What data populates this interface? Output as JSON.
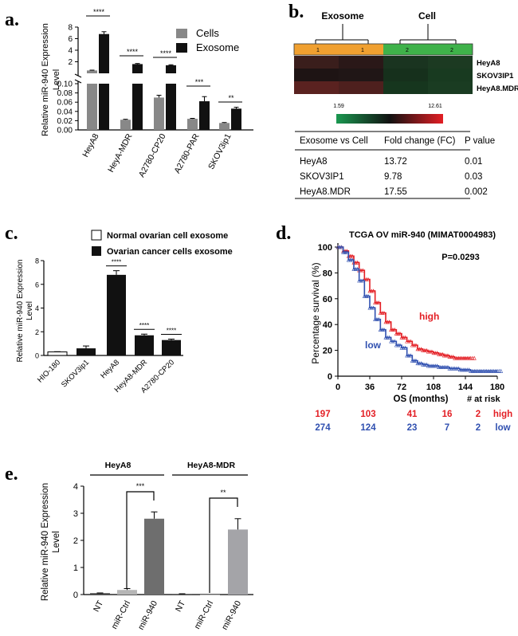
{
  "panels": {
    "a": "a.",
    "b": "b.",
    "c": "c.",
    "d": "d.",
    "e": "e."
  },
  "colors": {
    "black": "#111111",
    "grey": "#888888",
    "lightgrey": "#b0b0b0",
    "red": "#e31e24",
    "blue": "#3050b0"
  },
  "chart_data": [
    {
      "id": "a",
      "type": "bar",
      "categories": [
        "HeyA8",
        "HeyA-MDR",
        "A2780-CP20",
        "A2780-PAR",
        "SKOV3ip1"
      ],
      "series": [
        {
          "name": "Cells",
          "values": [
            0.5,
            0.022,
            0.07,
            0.024,
            0.015
          ],
          "errors": [
            0.05,
            0.001,
            0.005,
            0.001,
            0.001
          ]
        },
        {
          "name": "Exosome",
          "values": [
            6.8,
            1.6,
            1.4,
            0.062,
            0.046
          ],
          "errors": [
            0.4,
            0.1,
            0.08,
            0.01,
            0.003
          ]
        }
      ],
      "ylabel": "Relative miR-940 Expression Level",
      "ylim_upper": [
        0,
        8
      ],
      "yticks_upper": [
        "8",
        "6",
        "4",
        "2"
      ],
      "ylim_lower": [
        0,
        0.1
      ],
      "yticks_lower": [
        "0.10",
        "0.08",
        "0.06",
        "0.04",
        "0.02",
        "0.00"
      ],
      "significance": [
        "****",
        "****",
        "****",
        "***",
        "**"
      ],
      "legend": [
        "Cells",
        "Exosome"
      ]
    },
    {
      "id": "b",
      "type": "heatmap",
      "groups": [
        "Exosome",
        "Cell"
      ],
      "column_tags": [
        "1",
        "1",
        "2",
        "2"
      ],
      "rows": [
        "HeyA8",
        "SKOV3IP1",
        "HeyA8.MDR"
      ],
      "scale_min": "1.59",
      "scale_max": "12.61",
      "table": {
        "headers": [
          "Exosome vs Cell",
          "Fold change (FC)",
          "P value"
        ],
        "rows": [
          [
            "HeyA8",
            "13.72",
            "0.01"
          ],
          [
            "SKOV3IP1",
            "9.78",
            "0.03"
          ],
          [
            "HeyA8.MDR",
            "17.55",
            "0.002"
          ]
        ]
      }
    },
    {
      "id": "c",
      "type": "bar",
      "categories": [
        "HIO-180",
        "SKOV3ip1",
        "HeyA8",
        "HeyA8-MDR",
        "A2780-CP20"
      ],
      "values": [
        0.3,
        0.6,
        6.8,
        1.7,
        1.3
      ],
      "errors": [
        0.02,
        0.2,
        0.35,
        0.1,
        0.08
      ],
      "fill": [
        "white",
        "black",
        "black",
        "black",
        "black"
      ],
      "ylabel": "Relative miR-940 Expression Level",
      "ylim": [
        0,
        8
      ],
      "yticks": [
        "0",
        "2",
        "4",
        "6",
        "8"
      ],
      "significance": [
        "",
        "",
        "****",
        "****",
        "****"
      ],
      "legend": [
        "Normal ovarian cell exosome",
        "Ovarian cancer cells exosome"
      ]
    },
    {
      "id": "d",
      "type": "line",
      "title": "TCGA OV miR-940 (MIMAT0004983)",
      "pvalue": "P=0.0293",
      "xlabel": "OS (months)",
      "ylabel": "Percentage survival (%)",
      "xlim": [
        0,
        180
      ],
      "ylim": [
        0,
        100
      ],
      "xticks": [
        "0",
        "36",
        "72",
        "108",
        "144",
        "180"
      ],
      "yticks": [
        "0",
        "20",
        "40",
        "60",
        "80",
        "100"
      ],
      "series": [
        {
          "name": "high",
          "x": [
            0,
            6,
            12,
            18,
            24,
            30,
            36,
            42,
            48,
            54,
            60,
            66,
            72,
            78,
            84,
            90,
            96,
            102,
            108,
            114,
            120,
            126,
            132,
            138,
            144,
            150
          ],
          "y": [
            100,
            97,
            93,
            88,
            82,
            75,
            66,
            57,
            49,
            42,
            36,
            33,
            30,
            27,
            24,
            21,
            20,
            19,
            18,
            17,
            16,
            15,
            14,
            14,
            14,
            14
          ]
        },
        {
          "name": "low",
          "x": [
            0,
            6,
            12,
            18,
            24,
            30,
            36,
            42,
            48,
            54,
            60,
            66,
            72,
            78,
            84,
            90,
            96,
            102,
            108,
            114,
            120,
            126,
            132,
            138,
            144,
            150,
            156,
            162,
            168,
            174,
            180
          ],
          "y": [
            100,
            96,
            90,
            83,
            74,
            62,
            53,
            44,
            36,
            30,
            27,
            24,
            22,
            16,
            12,
            10,
            9,
            8,
            8,
            7,
            7,
            6,
            6,
            5,
            5,
            4,
            4,
            4,
            4,
            4,
            4
          ]
        }
      ],
      "at_risk_label": "# at risk",
      "at_risk_high": {
        "name": "high",
        "counts": [
          "197",
          "103",
          "41",
          "16",
          "2"
        ]
      },
      "at_risk_low": {
        "name": "low",
        "counts": [
          "274",
          "124",
          "23",
          "7",
          "2"
        ]
      }
    },
    {
      "id": "e",
      "type": "bar",
      "categories": [
        "NT",
        "miR-Ctrl",
        "miR-940",
        "NT",
        "miR-Ctrl",
        "miR-940"
      ],
      "values": [
        0.05,
        0.17,
        2.8,
        0.02,
        0.0,
        2.4
      ],
      "errors": [
        0.01,
        0.05,
        0.25,
        0.01,
        0.0,
        0.4
      ],
      "fill": [
        "dark",
        "light",
        "dark",
        "dark",
        "light",
        "light"
      ],
      "groups": [
        "HeyA8",
        "HeyA8-MDR"
      ],
      "ylabel": "Relative miR-940 Expression Level",
      "ylim": [
        0,
        4
      ],
      "yticks": [
        "0",
        "1",
        "2",
        "3",
        "4"
      ],
      "significance": [
        "***",
        "**"
      ]
    }
  ]
}
